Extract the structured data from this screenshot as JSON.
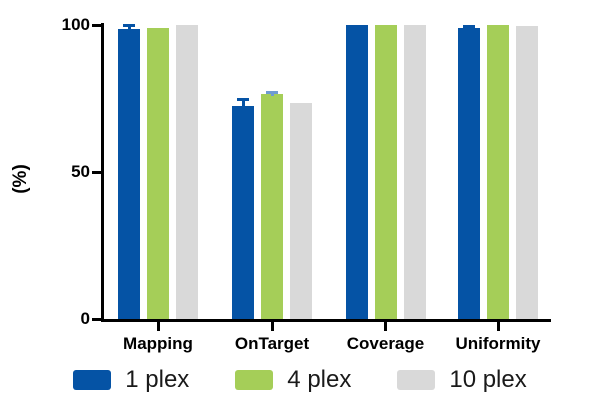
{
  "chart_data": {
    "type": "bar",
    "title": "",
    "xlabel": "",
    "ylabel": "(%)",
    "ylim": [
      0,
      100
    ],
    "yticks": [
      0,
      50,
      100
    ],
    "grid": false,
    "legend_position": "bottom",
    "axis_color": "#000000",
    "background_color": "#ffffff",
    "categories": [
      "Mapping",
      "OnTarget",
      "Coverage",
      "Uniformity"
    ],
    "series": [
      {
        "name": "1 plex",
        "color": "#0553a5",
        "error_color": "#0553a5",
        "values": [
          98.5,
          72.5,
          100,
          99
        ],
        "errors": [
          1.5,
          2.5,
          0,
          0.6
        ]
      },
      {
        "name": "4 plex",
        "color": "#a5ce58",
        "error_color": "#6f9bd1",
        "values": [
          99,
          76.5,
          100,
          100
        ],
        "errors": [
          0,
          0.8,
          0,
          0
        ]
      },
      {
        "name": "10 plex",
        "color": "#d9d9d9",
        "error_color": "#bdbdbd",
        "values": [
          100,
          73.5,
          100,
          99.8
        ],
        "errors": [
          0,
          0,
          0,
          0
        ]
      }
    ]
  }
}
